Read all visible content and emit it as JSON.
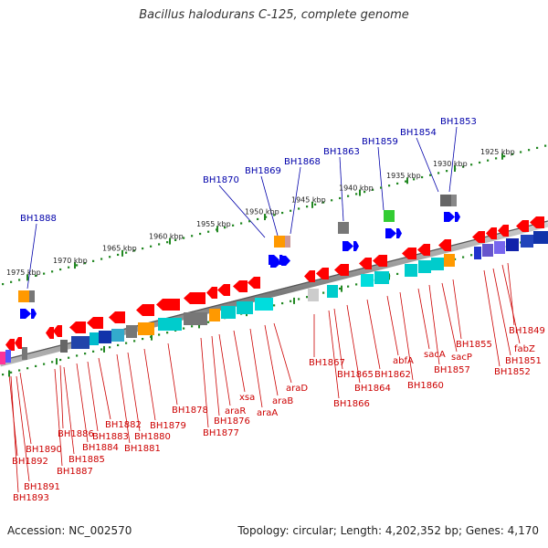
{
  "title": "Bacillus halodurans C-125, complete genome",
  "footer": {
    "accession": "Accession: NC_002570",
    "stats": "Topology: circular; Length: 4,202,352 bp; Genes: 4,170"
  },
  "colors": {
    "forward_arrow": "#ff0000",
    "reverse_arrow": "#0000ff",
    "backbone": "#888888",
    "tick": "#228822",
    "red_label": "#cc0000",
    "blue_label": "#0000aa"
  },
  "kbp_labels": [
    "1975 kbp",
    "1970 kbp",
    "1965 kbp",
    "1960 kbp",
    "1955 kbp",
    "1950 kbp",
    "1945 kbp",
    "1940 kbp",
    "1935 kbp",
    "1930 kbp",
    "1925 kbp"
  ],
  "blue_genes": [
    "BH1888",
    "BH1870",
    "BH1869",
    "BH1868",
    "BH1863",
    "BH1859",
    "BH1854",
    "BH1853"
  ],
  "red_genes": [
    "BH1893",
    "BH1891",
    "BH1892",
    "BH1890",
    "BH1887",
    "BH1885",
    "BH1886",
    "BH1884",
    "BH1883",
    "BH1882",
    "BH1881",
    "BH1880",
    "BH1879",
    "BH1878",
    "BH1877",
    "BH1876",
    "araR",
    "xsa",
    "araA",
    "araB",
    "araD",
    "BH1867",
    "BH1866",
    "BH1865",
    "BH1864",
    "BH1862",
    "abfA",
    "BH1860",
    "sacA",
    "BH1857",
    "sacP",
    "BH1855",
    "BH1852",
    "BH1851",
    "fabZ",
    "BH1849"
  ]
}
